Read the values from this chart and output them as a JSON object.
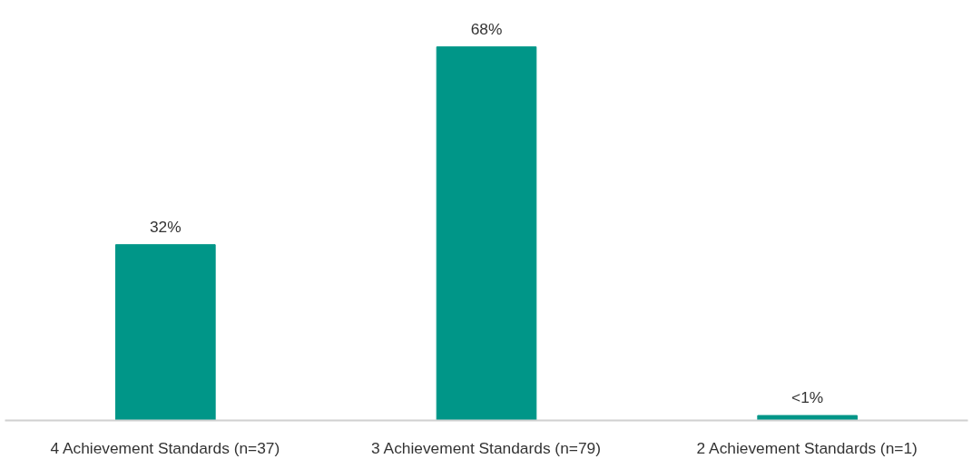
{
  "chart_data": {
    "type": "bar",
    "categories": [
      "4 Achievement Standards (n=37)",
      "3 Achievement Standards (n=79)",
      "2 Achievement Standards (n=1)"
    ],
    "values": [
      32,
      68,
      0.9
    ],
    "color": "#009688",
    "value_labels": [
      "32%",
      "68%",
      "<1%"
    ]
  }
}
